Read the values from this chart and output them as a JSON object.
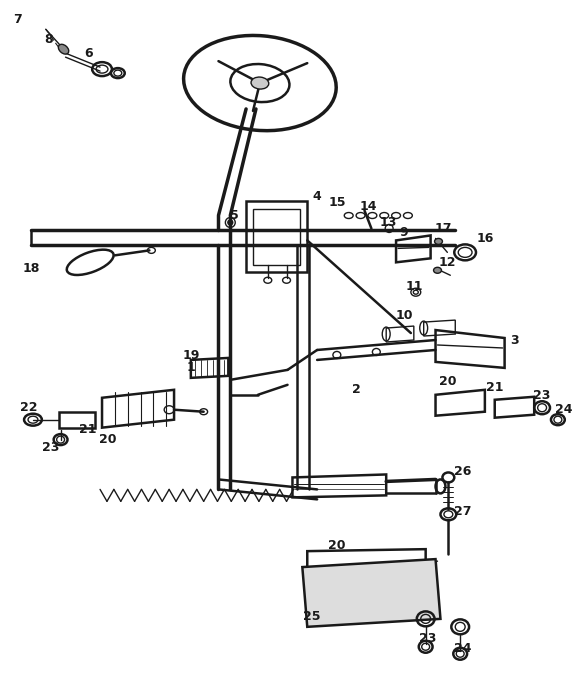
{
  "bg_color": "#ffffff",
  "line_color": "#1a1a1a",
  "fig_width": 5.75,
  "fig_height": 6.84,
  "dpi": 100
}
